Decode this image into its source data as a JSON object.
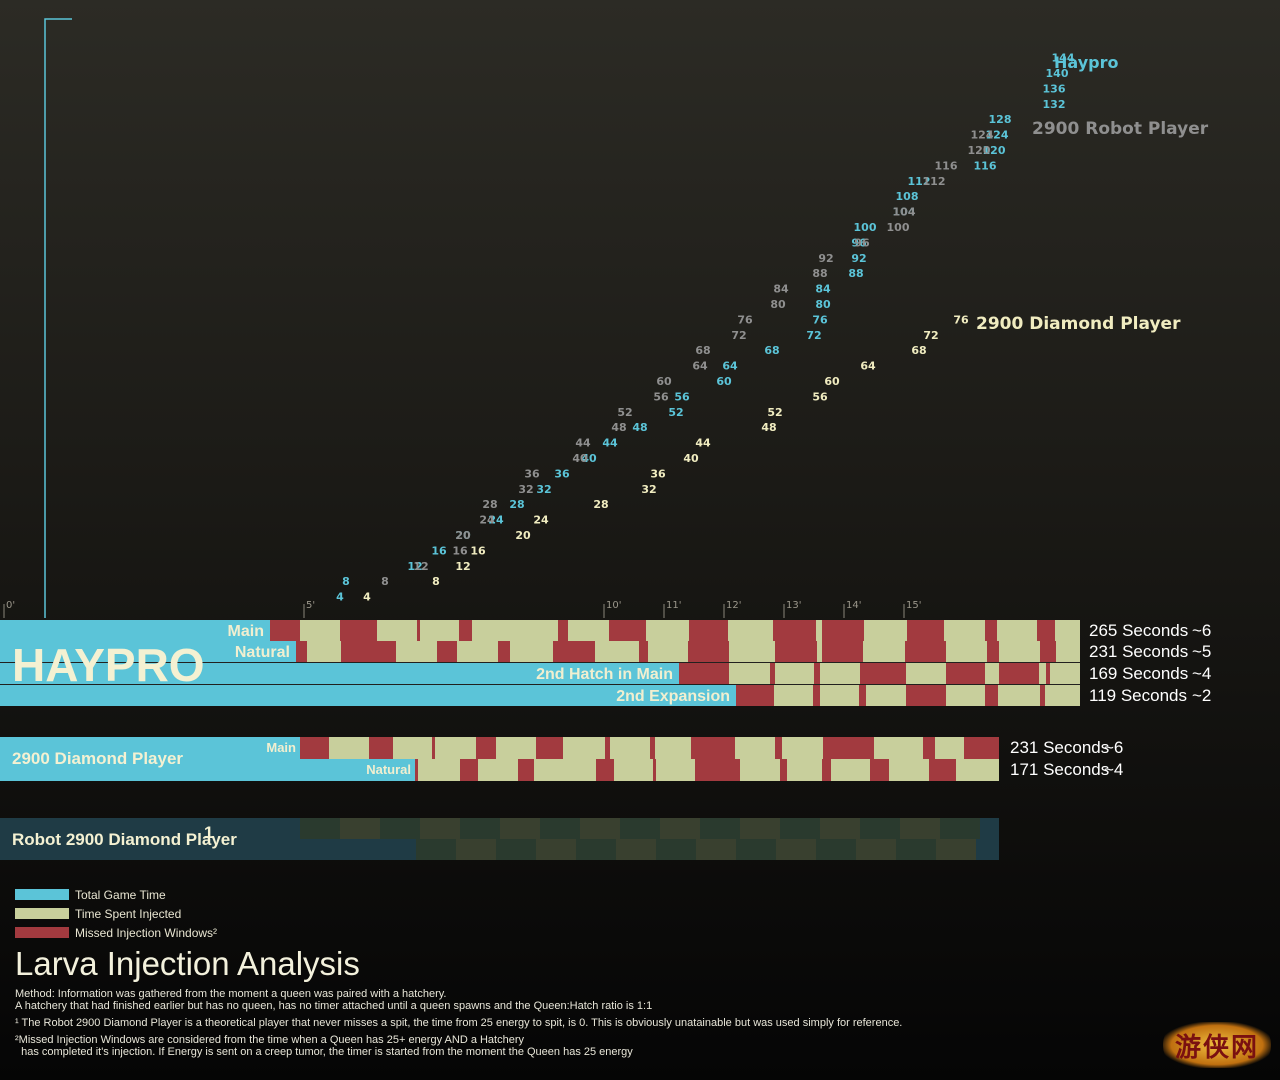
{
  "colors": {
    "total": "#5bc4d8",
    "injected": "#c8cf9c",
    "missed": "#a23a3f",
    "robot_dark": "#1f3b45",
    "robot_block_a": "#2a3a2e",
    "robot_block_b": "#39402f",
    "haypro_num": "#5bc4d8",
    "robot_num": "#8f8f8f",
    "diamond_num": "#f0ecc0"
  },
  "chart_data": {
    "type": "scatter",
    "x_tick_labels": [
      "0'",
      "5'",
      "10'",
      "11'",
      "12'",
      "13'",
      "14'",
      "15'"
    ],
    "x_tick_minutes": [
      0,
      5,
      10,
      11,
      12,
      13,
      14,
      15
    ],
    "series": [
      {
        "name": "Haypro",
        "points": [
          {
            "t": 5.6,
            "v": 4
          },
          {
            "t": 5.7,
            "v": 8
          },
          {
            "t": 6.85,
            "v": 12
          },
          {
            "t": 7.25,
            "v": 16
          },
          {
            "t": 7.65,
            "v": 20
          },
          {
            "t": 8.2,
            "v": 24
          },
          {
            "t": 8.55,
            "v": 28
          },
          {
            "t": 9.0,
            "v": 32
          },
          {
            "t": 9.3,
            "v": 36
          },
          {
            "t": 9.75,
            "v": 40
          },
          {
            "t": 10.1,
            "v": 44
          },
          {
            "t": 10.6,
            "v": 48
          },
          {
            "t": 11.2,
            "v": 52
          },
          {
            "t": 11.3,
            "v": 56
          },
          {
            "t": 12.0,
            "v": 60
          },
          {
            "t": 12.1,
            "v": 64
          },
          {
            "t": 12.8,
            "v": 68
          },
          {
            "t": 13.5,
            "v": 72
          },
          {
            "t": 13.6,
            "v": 76
          },
          {
            "t": 13.65,
            "v": 80
          },
          {
            "t": 13.65,
            "v": 84
          },
          {
            "t": 14.2,
            "v": 88
          },
          {
            "t": 14.25,
            "v": 92
          },
          {
            "t": 14.25,
            "v": 96
          },
          {
            "t": 14.35,
            "v": 100
          },
          {
            "t": 15.0,
            "v": 104
          },
          {
            "t": 15.05,
            "v": 108
          },
          {
            "t": 15.25,
            "v": 112
          },
          {
            "t": 16.35,
            "v": 116
          },
          {
            "t": 16.5,
            "v": 120
          },
          {
            "t": 16.55,
            "v": 124
          },
          {
            "t": 16.6,
            "v": 128
          },
          {
            "t": 17.5,
            "v": 132
          },
          {
            "t": 17.5,
            "v": 136
          },
          {
            "t": 17.55,
            "v": 140
          },
          {
            "t": 17.65,
            "v": 144
          }
        ]
      },
      {
        "name": "2900 Robot  Player",
        "points": [
          {
            "t": 6.35,
            "v": 8
          },
          {
            "t": 6.95,
            "v": 12
          },
          {
            "t": 7.6,
            "v": 16
          },
          {
            "t": 7.65,
            "v": 20
          },
          {
            "t": 8.05,
            "v": 24
          },
          {
            "t": 8.1,
            "v": 28
          },
          {
            "t": 8.7,
            "v": 32
          },
          {
            "t": 8.8,
            "v": 36
          },
          {
            "t": 9.6,
            "v": 40
          },
          {
            "t": 9.65,
            "v": 44
          },
          {
            "t": 10.25,
            "v": 48
          },
          {
            "t": 10.35,
            "v": 52
          },
          {
            "t": 10.95,
            "v": 56
          },
          {
            "t": 11.0,
            "v": 60
          },
          {
            "t": 11.6,
            "v": 64
          },
          {
            "t": 11.65,
            "v": 68
          },
          {
            "t": 12.25,
            "v": 72
          },
          {
            "t": 12.35,
            "v": 76
          },
          {
            "t": 12.9,
            "v": 80
          },
          {
            "t": 12.95,
            "v": 84
          },
          {
            "t": 13.6,
            "v": 88
          },
          {
            "t": 13.7,
            "v": 92
          },
          {
            "t": 14.3,
            "v": 96
          },
          {
            "t": 14.9,
            "v": 100
          },
          {
            "t": 15.0,
            "v": 104
          },
          {
            "t": 15.5,
            "v": 112
          },
          {
            "t": 15.7,
            "v": 116
          },
          {
            "t": 16.25,
            "v": 120
          },
          {
            "t": 16.3,
            "v": 124
          }
        ]
      },
      {
        "name": "2900 Diamond Player",
        "points": [
          {
            "t": 6.05,
            "v": 4
          },
          {
            "t": 7.2,
            "v": 8
          },
          {
            "t": 7.65,
            "v": 12
          },
          {
            "t": 7.9,
            "v": 16
          },
          {
            "t": 8.65,
            "v": 20
          },
          {
            "t": 8.95,
            "v": 24
          },
          {
            "t": 9.95,
            "v": 28
          },
          {
            "t": 10.75,
            "v": 32
          },
          {
            "t": 10.9,
            "v": 36
          },
          {
            "t": 11.45,
            "v": 40
          },
          {
            "t": 11.65,
            "v": 44
          },
          {
            "t": 12.75,
            "v": 48
          },
          {
            "t": 12.85,
            "v": 52
          },
          {
            "t": 13.6,
            "v": 56
          },
          {
            "t": 13.8,
            "v": 60
          },
          {
            "t": 14.4,
            "v": 64
          },
          {
            "t": 15.25,
            "v": 68
          },
          {
            "t": 15.45,
            "v": 72
          },
          {
            "t": 15.95,
            "v": 76
          }
        ]
      }
    ]
  },
  "lanes": {
    "player_name": "HAYPRO",
    "haypro": [
      {
        "label": "Main",
        "seconds": "265 Seconds",
        "count": "~6",
        "start": 0.27,
        "segments": [
          [
            "m",
            0.27,
            0.3
          ],
          [
            "i",
            0.3,
            0.34
          ],
          [
            "m",
            0.34,
            0.377
          ],
          [
            "i",
            0.377,
            0.417
          ],
          [
            "m",
            0.417,
            0.42
          ],
          [
            "i",
            0.42,
            0.459
          ],
          [
            "m",
            0.459,
            0.472
          ],
          [
            "i",
            0.472,
            0.558
          ],
          [
            "m",
            0.558,
            0.568
          ],
          [
            "i",
            0.568,
            0.609
          ],
          [
            "m",
            0.609,
            0.646
          ],
          [
            "i",
            0.646,
            0.689
          ],
          [
            "m",
            0.689,
            0.728
          ],
          [
            "i",
            0.728,
            0.773
          ],
          [
            "m",
            0.773,
            0.816
          ],
          [
            "i",
            0.816,
            0.822
          ],
          [
            "m",
            0.822,
            0.864
          ],
          [
            "i",
            0.864,
            0.907
          ],
          [
            "m",
            0.907,
            0.944
          ],
          [
            "i",
            0.944,
            0.985
          ],
          [
            "m",
            0.985,
            0.997
          ],
          [
            "i",
            0.997,
            1.037
          ],
          [
            "m",
            1.037,
            1.055
          ],
          [
            "i",
            1.055,
            1.08
          ]
        ]
      },
      {
        "label": "Natural",
        "seconds": "231 Seconds",
        "count": "~5",
        "start": 0.296,
        "segments": [
          [
            "m",
            0.296,
            0.307
          ],
          [
            "i",
            0.307,
            0.341
          ],
          [
            "m",
            0.341,
            0.396
          ],
          [
            "i",
            0.396,
            0.437
          ],
          [
            "m",
            0.437,
            0.457
          ],
          [
            "i",
            0.457,
            0.498
          ],
          [
            "m",
            0.498,
            0.51
          ],
          [
            "i",
            0.51,
            0.553
          ],
          [
            "m",
            0.553,
            0.595
          ],
          [
            "i",
            0.595,
            0.639
          ],
          [
            "m",
            0.639,
            0.648
          ],
          [
            "i",
            0.648,
            0.688
          ],
          [
            "m",
            0.688,
            0.729
          ],
          [
            "i",
            0.729,
            0.775
          ],
          [
            "m",
            0.775,
            0.817
          ],
          [
            "i",
            0.817,
            0.822
          ],
          [
            "m",
            0.822,
            0.863
          ],
          [
            "i",
            0.863,
            0.905
          ],
          [
            "m",
            0.905,
            0.946
          ],
          [
            "i",
            0.946,
            0.987
          ],
          [
            "m",
            0.987,
            0.999
          ],
          [
            "i",
            0.999,
            1.04
          ],
          [
            "m",
            1.04,
            1.056
          ],
          [
            "i",
            1.056,
            1.08
          ]
        ]
      },
      {
        "label": "2nd Hatch in Main",
        "seconds": "169 Seconds",
        "count": "~4",
        "start": 0.679,
        "segments": [
          [
            "m",
            0.679,
            0.729
          ],
          [
            "i",
            0.729,
            0.77
          ],
          [
            "m",
            0.77,
            0.775
          ],
          [
            "i",
            0.775,
            0.814
          ],
          [
            "m",
            0.814,
            0.82
          ],
          [
            "i",
            0.82,
            0.86
          ],
          [
            "m",
            0.86,
            0.906
          ],
          [
            "i",
            0.906,
            0.946
          ],
          [
            "m",
            0.946,
            0.985
          ],
          [
            "i",
            0.985,
            0.999
          ],
          [
            "m",
            0.999,
            1.039
          ],
          [
            "i",
            1.039,
            1.046
          ],
          [
            "m",
            1.046,
            1.05
          ],
          [
            "i",
            1.05,
            1.08
          ]
        ]
      },
      {
        "label": "2nd Expansion",
        "seconds": "119 Seconds",
        "count": "~2",
        "start": 0.736,
        "segments": [
          [
            "m",
            0.736,
            0.774
          ],
          [
            "i",
            0.774,
            0.813
          ],
          [
            "m",
            0.813,
            0.82
          ],
          [
            "i",
            0.82,
            0.859
          ],
          [
            "m",
            0.859,
            0.866
          ],
          [
            "i",
            0.866,
            0.906
          ],
          [
            "m",
            0.906,
            0.946
          ],
          [
            "i",
            0.946,
            0.985
          ],
          [
            "m",
            0.985,
            0.998
          ],
          [
            "i",
            0.998,
            1.04
          ],
          [
            "m",
            1.04,
            1.045
          ],
          [
            "i",
            1.045,
            1.08
          ]
        ]
      }
    ],
    "diamond_name": "2900 Diamond Player",
    "diamond": [
      {
        "label": "Main",
        "seconds": "231 Seconds",
        "count": "~6",
        "start": 0.3,
        "segments": [
          [
            "m",
            0.3,
            0.329
          ],
          [
            "i",
            0.329,
            0.369
          ],
          [
            "m",
            0.369,
            0.393
          ],
          [
            "i",
            0.393,
            0.432
          ],
          [
            "m",
            0.432,
            0.435
          ],
          [
            "i",
            0.435,
            0.476
          ],
          [
            "m",
            0.476,
            0.496
          ],
          [
            "i",
            0.496,
            0.536
          ],
          [
            "m",
            0.536,
            0.563
          ],
          [
            "i",
            0.563,
            0.605
          ],
          [
            "m",
            0.605,
            0.61
          ],
          [
            "i",
            0.61,
            0.65
          ],
          [
            "m",
            0.65,
            0.655
          ],
          [
            "i",
            0.655,
            0.691
          ],
          [
            "m",
            0.691,
            0.735
          ],
          [
            "i",
            0.735,
            0.775
          ],
          [
            "m",
            0.775,
            0.782
          ],
          [
            "i",
            0.782,
            0.823
          ],
          [
            "m",
            0.823,
            0.874
          ],
          [
            "i",
            0.874,
            0.923
          ],
          [
            "m",
            0.923,
            0.935
          ],
          [
            "i",
            0.935,
            0.964
          ],
          [
            "m",
            0.964,
            0.999
          ]
        ]
      },
      {
        "label": "Natural",
        "seconds": "171 Seconds",
        "count": "~4",
        "start": 0.415,
        "segments": [
          [
            "m",
            0.415,
            0.418
          ],
          [
            "i",
            0.418,
            0.46
          ],
          [
            "m",
            0.46,
            0.478
          ],
          [
            "i",
            0.478,
            0.518
          ],
          [
            "m",
            0.518,
            0.534
          ],
          [
            "i",
            0.534,
            0.596
          ],
          [
            "m",
            0.596,
            0.614
          ],
          [
            "i",
            0.614,
            0.653
          ],
          [
            "m",
            0.653,
            0.656
          ],
          [
            "i",
            0.656,
            0.695
          ],
          [
            "m",
            0.695,
            0.74
          ],
          [
            "i",
            0.74,
            0.78
          ],
          [
            "m",
            0.78,
            0.787
          ],
          [
            "i",
            0.787,
            0.822
          ],
          [
            "m",
            0.822,
            0.831
          ],
          [
            "i",
            0.831,
            0.87
          ],
          [
            "m",
            0.87,
            0.889
          ],
          [
            "i",
            0.889,
            0.929
          ],
          [
            "m",
            0.929,
            0.956
          ],
          [
            "i",
            0.956,
            0.999
          ]
        ]
      }
    ],
    "robot_name": "Robot 2900 Diamond Player",
    "robot_name_sup": "1",
    "robot": [
      {
        "start": 0.3,
        "end": 0.98
      },
      {
        "start": 0.416,
        "end": 0.976
      }
    ]
  },
  "legend": [
    {
      "label": "Total Game Time",
      "color_key": "total"
    },
    {
      "label": "Time Spent Injected",
      "color_key": "injected"
    },
    {
      "label": "Missed Injection Windows²",
      "color_key": "missed"
    }
  ],
  "title": "Larva Injection Analysis",
  "notes": {
    "method_1": "Method:  Information was gathered from the moment a queen was paired with a hatchery.",
    "method_2": "A hatchery that had finished earlier but has no queen, has no timer attached until a queen spawns and the Queen:Hatch ratio is 1:1",
    "note_1": "¹ The Robot 2900 Diamond Player is a theoretical player that never misses a spit, the time from 25 energy to spit, is 0.  This is obviously unatainable but was used simply for reference.",
    "note_2a": "²Missed Injection Windows are considered from the time when a Queen has 25+ energy AND a Hatchery",
    "note_2b": "  has completed it's injection. If Energy is sent on a creep tumor, the timer is started from the moment the Queen has 25 energy"
  },
  "watermark": "游侠网"
}
